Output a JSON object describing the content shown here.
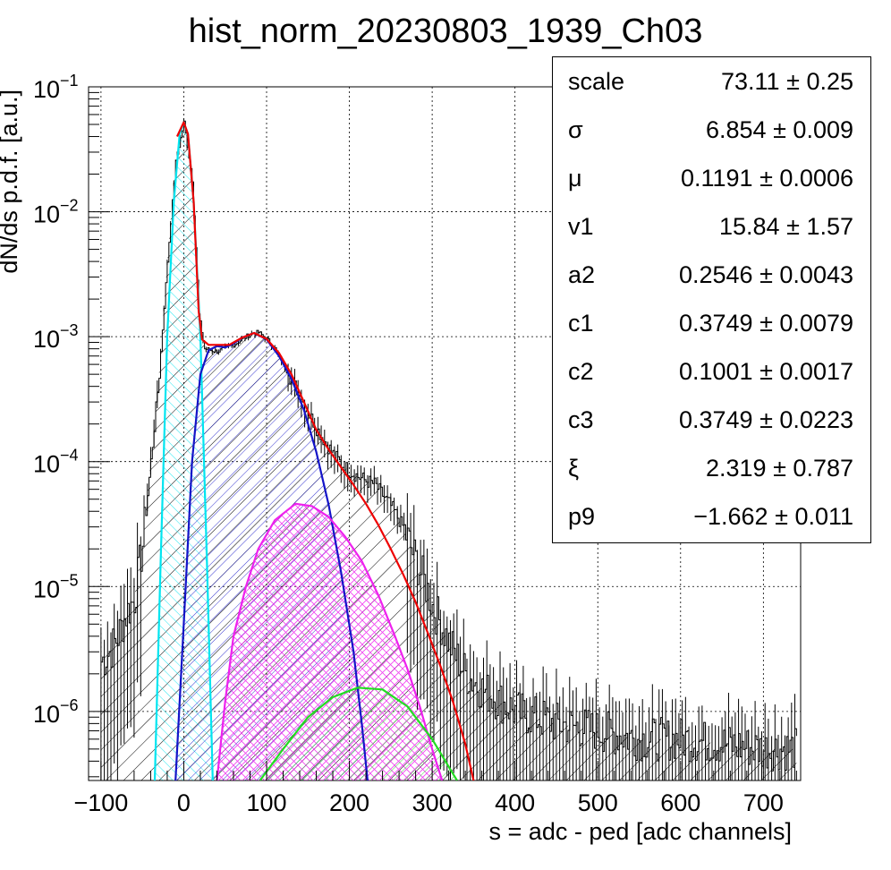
{
  "chart_data": {
    "type": "histogram",
    "title": "hist_norm_20230803_1939_Ch03",
    "xlabel": "s = adc - ped [adc channels]",
    "ylabel": "dN/ds p.d.f. [a.u.]",
    "xlim": [
      -115,
      745
    ],
    "ylim": [
      2.8e-07,
      0.1
    ],
    "log_y": true,
    "grid": true,
    "x_ticks": [
      -100,
      0,
      100,
      200,
      300,
      400,
      500,
      600,
      700
    ],
    "x_tick_labels": [
      "−100",
      "0",
      "100",
      "200",
      "300",
      "400",
      "500",
      "600",
      "700"
    ],
    "y_ticks": [
      {
        "value": 0.1,
        "mantissa": "10",
        "exp": "−1"
      },
      {
        "value": 0.01,
        "mantissa": "10",
        "exp": "−2"
      },
      {
        "value": 0.001,
        "mantissa": "10",
        "exp": "−3"
      },
      {
        "value": 0.0001,
        "mantissa": "10",
        "exp": "−4"
      },
      {
        "value": 1e-05,
        "mantissa": "10",
        "exp": "−5"
      },
      {
        "value": 1e-06,
        "mantissa": "10",
        "exp": "−6"
      }
    ],
    "data_histogram": {
      "color": "#000000",
      "points": [
        [
          -100,
          2.5e-06
        ],
        [
          -90,
          3e-06
        ],
        [
          -80,
          4e-06
        ],
        [
          -70,
          6e-06
        ],
        [
          -60,
          8e-06
        ],
        [
          -50,
          2.2e-05
        ],
        [
          -40,
          0.0001
        ],
        [
          -30,
          0.0005
        ],
        [
          -20,
          0.004
        ],
        [
          -10,
          0.025
        ],
        [
          0,
          0.052
        ],
        [
          10,
          0.018
        ],
        [
          18,
          0.0015
        ],
        [
          25,
          0.0008
        ],
        [
          40,
          0.00076
        ],
        [
          60,
          0.00086
        ],
        [
          80,
          0.00105
        ],
        [
          90,
          0.00108
        ],
        [
          100,
          0.00096
        ],
        [
          110,
          0.0008
        ],
        [
          120,
          0.0006
        ],
        [
          130,
          0.00045
        ],
        [
          140,
          0.00034
        ],
        [
          150,
          0.00025
        ],
        [
          160,
          0.000185
        ],
        [
          170,
          0.000145
        ],
        [
          180,
          0.000115
        ],
        [
          190,
          9.6e-05
        ],
        [
          200,
          8.4e-05
        ],
        [
          210,
          7.6e-05
        ],
        [
          220,
          7e-05
        ],
        [
          230,
          6.6e-05
        ],
        [
          240,
          5.4e-05
        ],
        [
          250,
          4.4e-05
        ],
        [
          260,
          3.4e-05
        ],
        [
          270,
          2.4e-05
        ],
        [
          280,
          1.6e-05
        ],
        [
          290,
          1.1e-05
        ],
        [
          300,
          7e-06
        ],
        [
          310,
          5e-06
        ],
        [
          320,
          3.5e-06
        ],
        [
          340,
          2e-06
        ],
        [
          360,
          1.5e-06
        ],
        [
          400,
          1e-06
        ],
        [
          450,
          8e-07
        ],
        [
          500,
          7e-07
        ],
        [
          550,
          6e-07
        ],
        [
          600,
          6e-07
        ],
        [
          650,
          5.5e-07
        ],
        [
          700,
          5e-07
        ],
        [
          740,
          5e-07
        ]
      ]
    },
    "series": [
      {
        "color": "#00e5f0",
        "hatch": "forward",
        "points": [
          [
            -35,
            2.8e-07
          ],
          [
            -28,
            1.5e-05
          ],
          [
            -20,
            0.001
          ],
          [
            -12,
            0.012
          ],
          [
            -5,
            0.042
          ],
          [
            0,
            0.052
          ],
          [
            5,
            0.042
          ],
          [
            12,
            0.012
          ],
          [
            20,
            0.001
          ],
          [
            28,
            1.5e-05
          ],
          [
            35,
            2.8e-07
          ]
        ]
      },
      {
        "color": "#1414c8",
        "hatch": "back",
        "points": [
          [
            -10,
            2.8e-07
          ],
          [
            0,
            5e-06
          ],
          [
            10,
            0.0001
          ],
          [
            20,
            0.0005
          ],
          [
            30,
            0.00078
          ],
          [
            40,
            0.00084
          ],
          [
            50,
            0.00082
          ],
          [
            60,
            0.00088
          ],
          [
            70,
            0.00098
          ],
          [
            85,
            0.00107
          ],
          [
            100,
            0.00095
          ],
          [
            115,
            0.0007
          ],
          [
            130,
            0.00046
          ],
          [
            145,
            0.00026
          ],
          [
            160,
            0.00012
          ],
          [
            175,
            4.5e-05
          ],
          [
            190,
            1.3e-05
          ],
          [
            205,
            3e-06
          ],
          [
            215,
            8e-07
          ],
          [
            222,
            2.8e-07
          ]
        ]
      },
      {
        "color": "#ee22ee",
        "hatch": "cross",
        "points": [
          [
            40,
            2.8e-07
          ],
          [
            50,
            1.2e-06
          ],
          [
            60,
            4e-06
          ],
          [
            75,
            1e-05
          ],
          [
            90,
            2e-05
          ],
          [
            110,
            3.4e-05
          ],
          [
            135,
            4.6e-05
          ],
          [
            155,
            4.4e-05
          ],
          [
            175,
            3.6e-05
          ],
          [
            195,
            2.5e-05
          ],
          [
            215,
            1.6e-05
          ],
          [
            235,
            8.5e-06
          ],
          [
            255,
            4e-06
          ],
          [
            270,
            2.2e-06
          ],
          [
            285,
            1.1e-06
          ],
          [
            300,
            5e-07
          ],
          [
            312,
            2.8e-07
          ]
        ]
      },
      {
        "color": "#22dd22",
        "hatch": "back",
        "points": [
          [
            92,
            2.8e-07
          ],
          [
            120,
            5e-07
          ],
          [
            150,
            9e-07
          ],
          [
            180,
            1.3e-06
          ],
          [
            210,
            1.55e-06
          ],
          [
            240,
            1.5e-06
          ],
          [
            270,
            1.1e-06
          ],
          [
            300,
            6e-07
          ],
          [
            330,
            2.8e-07
          ]
        ]
      },
      {
        "color": "#ee0000",
        "hatch": "none",
        "points": [
          [
            -8,
            0.04
          ],
          [
            0,
            0.052
          ],
          [
            5,
            0.042
          ],
          [
            12,
            0.012
          ],
          [
            18,
            0.0016
          ],
          [
            22,
            0.00095
          ],
          [
            30,
            0.00086
          ],
          [
            40,
            0.00086
          ],
          [
            55,
            0.00086
          ],
          [
            70,
            0.00098
          ],
          [
            85,
            0.00107
          ],
          [
            100,
            0.00096
          ],
          [
            115,
            0.00074
          ],
          [
            130,
            0.0005
          ],
          [
            145,
            0.0003
          ],
          [
            160,
            0.00018
          ],
          [
            175,
            0.000125
          ],
          [
            190,
            9e-05
          ],
          [
            205,
            6.5e-05
          ],
          [
            220,
            4.6e-05
          ],
          [
            235,
            3.1e-05
          ],
          [
            250,
            2e-05
          ],
          [
            265,
            1.25e-05
          ],
          [
            280,
            7.5e-06
          ],
          [
            295,
            4.2e-06
          ],
          [
            310,
            2.3e-06
          ],
          [
            325,
            1.2e-06
          ],
          [
            340,
            5.5e-07
          ],
          [
            350,
            2.8e-07
          ]
        ]
      }
    ]
  },
  "stats": [
    {
      "name": "scale",
      "value": "73.11",
      "error": "0.25"
    },
    {
      "name": "σ",
      "value": "6.854",
      "error": "0.009"
    },
    {
      "name": "μ",
      "value": "0.1191",
      "error": "0.0006"
    },
    {
      "name": "v1",
      "value": "15.84",
      "error": "1.57"
    },
    {
      "name": "a2",
      "value": "0.2546",
      "error": "0.0043"
    },
    {
      "name": "c1",
      "value": "0.3749",
      "error": "0.0079"
    },
    {
      "name": "c2",
      "value": "0.1001",
      "error": "0.0017"
    },
    {
      "name": "c3",
      "value": "0.3749",
      "error": "0.0223"
    },
    {
      "name": "ξ",
      "value": "2.319",
      "error": "0.787"
    },
    {
      "name": "p9",
      "value": "−1.662",
      "error": "0.011"
    }
  ],
  "pm_symbol": "±"
}
